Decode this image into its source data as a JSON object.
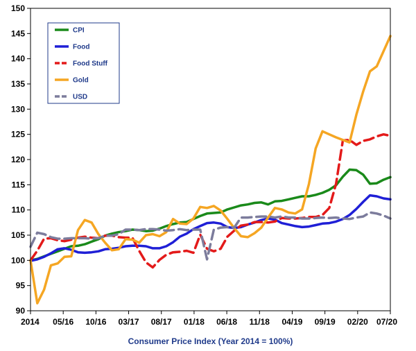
{
  "chart_data": {
    "type": "line",
    "title": "",
    "xlabel": "Consumer Price Index (Year 2014 = 100%)",
    "ylabel": "",
    "ylim": [
      90,
      150
    ],
    "yticks": [
      90,
      95,
      100,
      105,
      110,
      115,
      120,
      125,
      130,
      135,
      140,
      145,
      150
    ],
    "xticks": [
      "2014",
      "05/16",
      "10/16",
      "03/17",
      "08/17",
      "01/18",
      "06/18",
      "11/18",
      "04/19",
      "09/19",
      "02/20",
      "07/20"
    ],
    "grid": false,
    "legend_position": "top-left",
    "series": [
      {
        "name": "CPI",
        "color": "#1a8a1a",
        "style": "solid",
        "values": [
          100,
          100.3,
          100.8,
          101.3,
          101.8,
          102.3,
          102.8,
          102.9,
          103.2,
          103.7,
          104.2,
          104.9,
          105.3,
          105.6,
          105.8,
          106.1,
          106,
          105.8,
          105.9,
          106.3,
          106.8,
          107.2,
          107.5,
          107.6,
          108.2,
          108.8,
          109.3,
          109.4,
          109.5,
          110.1,
          110.5,
          110.9,
          111.1,
          111.4,
          111.5,
          111.1,
          111.7,
          111.8,
          112.1,
          112.4,
          112.7,
          112.7,
          113,
          113.4,
          114,
          114.9,
          116.6,
          118,
          117.9,
          117,
          115.2,
          115.3,
          116,
          116.5
        ]
      },
      {
        "name": "Food",
        "color": "#1f1fd6",
        "style": "solid",
        "values": [
          99.9,
          100.2,
          100.7,
          101.4,
          102.2,
          102.4,
          102.1,
          101.6,
          101.5,
          101.6,
          101.8,
          102.2,
          102.3,
          102.5,
          102.8,
          102.9,
          102.9,
          102.8,
          102.4,
          102.4,
          102.8,
          103.6,
          104.7,
          105.3,
          106.2,
          106.8,
          107.4,
          107.5,
          107.3,
          106.6,
          106.4,
          106.6,
          107.1,
          107.5,
          108,
          108.3,
          108.1,
          107.4,
          107.1,
          106.8,
          106.6,
          106.7,
          107,
          107.3,
          107.4,
          107.7,
          108.2,
          109,
          110.2,
          111.6,
          112.9,
          112.7,
          112.3,
          112.1
        ]
      },
      {
        "name": "Food Stuff",
        "color": "#e31a1a",
        "style": "dashed",
        "values": [
          100,
          101.9,
          104.3,
          104.4,
          104,
          103.8,
          104.1,
          104.5,
          104.7,
          104.5,
          104.4,
          104.9,
          104.9,
          104.6,
          104.5,
          104.5,
          101.9,
          99.6,
          98.6,
          100.1,
          101.1,
          101.6,
          101.7,
          101.9,
          101.5,
          105.1,
          102.3,
          101.8,
          102.3,
          104.7,
          105.9,
          106.9,
          107.1,
          107.6,
          107.6,
          107.5,
          107.7,
          108.4,
          108.3,
          108.3,
          108.4,
          108.6,
          108.6,
          109,
          110.4,
          115.2,
          123.8,
          123.9,
          122.9,
          123.7,
          124,
          124.6,
          125,
          124.7
        ]
      },
      {
        "name": "Gold",
        "color": "#f5a623",
        "style": "solid",
        "values": [
          100,
          91.5,
          94.2,
          99,
          99.4,
          100.7,
          100.8,
          106,
          108,
          107.5,
          105.2,
          103.5,
          102,
          102.2,
          104.2,
          104.1,
          103.5,
          105,
          105.2,
          104.8,
          105.6,
          108.2,
          107.3,
          107.2,
          108.3,
          110.6,
          110.4,
          110.8,
          109.9,
          108.2,
          106.4,
          104.8,
          104.6,
          105.4,
          106.5,
          108.5,
          110.4,
          110.1,
          109.5,
          109.3,
          110.1,
          115.1,
          122.2,
          125.6,
          125,
          124.4,
          123.9,
          123.4,
          128.9,
          133.5,
          137.5,
          138.5,
          141.5,
          144.5
        ]
      },
      {
        "name": "USD",
        "color": "#7c7c9c",
        "style": "dashed",
        "values": [
          102.7,
          105.5,
          105.2,
          104.6,
          104.3,
          104.3,
          104.4,
          104.4,
          104.4,
          104.3,
          104.4,
          104.9,
          104.9,
          105.2,
          106.1,
          106.1,
          106,
          106.2,
          106.2,
          106.1,
          105.9,
          106,
          106.2,
          106,
          106.1,
          106.1,
          100.2,
          106.1,
          106.5,
          106.6,
          106.5,
          108.5,
          108.5,
          108.6,
          108.7,
          108.7,
          108.5,
          108.7,
          108.5,
          108.5,
          108.3,
          108.3,
          108.4,
          108.5,
          108.4,
          108.5,
          108.3,
          108.2,
          108.5,
          108.7,
          109.5,
          109.3,
          108.9,
          108.3
        ]
      }
    ]
  }
}
